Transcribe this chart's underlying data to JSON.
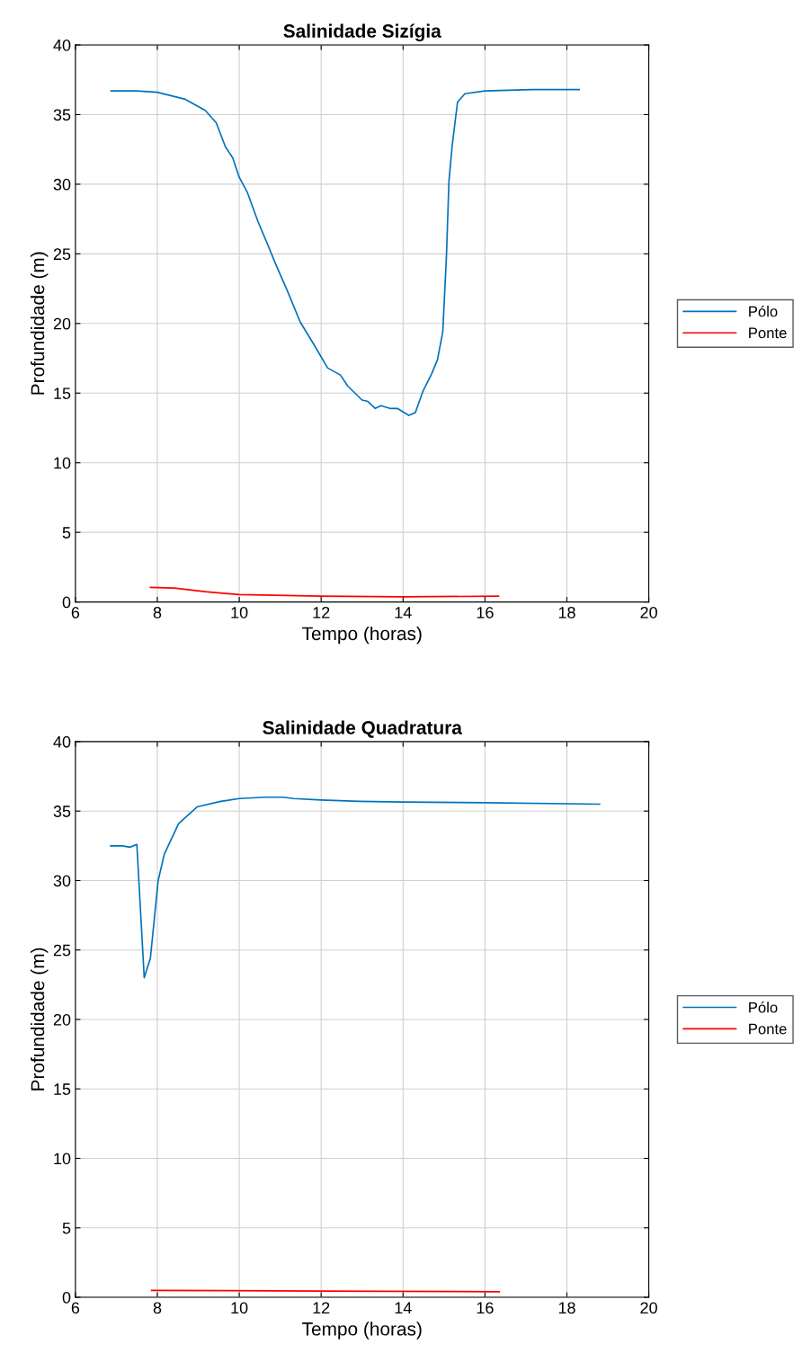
{
  "chart_data": [
    {
      "type": "line",
      "title": "Salinidade Sizígia",
      "xlabel": "Tempo (horas)",
      "ylabel": "Profundidade (m)",
      "xlim": [
        6,
        20
      ],
      "xticks": [
        6,
        8,
        10,
        12,
        14,
        16,
        18,
        20
      ],
      "ylim": [
        0,
        40
      ],
      "yticks": [
        0,
        5,
        10,
        15,
        20,
        25,
        30,
        35,
        40
      ],
      "grid": true,
      "legend": "right",
      "series": [
        {
          "name": "Pólo",
          "color": "#0072bd",
          "x": [
            6.87,
            7.5,
            8.0,
            8.68,
            9.17,
            9.44,
            9.66,
            9.84,
            10.0,
            10.2,
            10.46,
            10.69,
            10.87,
            11.18,
            11.49,
            11.8,
            12.16,
            12.47,
            12.65,
            13.0,
            13.14,
            13.32,
            13.46,
            13.68,
            13.86,
            14.14,
            14.3,
            14.48,
            14.7,
            14.84,
            14.97,
            15.06,
            15.12,
            15.2,
            15.33,
            15.51,
            16.0,
            17.16,
            18.3
          ],
          "values": [
            36.7,
            36.7,
            36.6,
            36.1,
            35.3,
            34.4,
            32.7,
            31.9,
            30.5,
            29.4,
            27.3,
            25.7,
            24.4,
            22.3,
            20.1,
            18.6,
            16.8,
            16.3,
            15.5,
            14.5,
            14.4,
            13.9,
            14.1,
            13.9,
            13.9,
            13.4,
            13.6,
            15.1,
            16.4,
            17.4,
            19.4,
            24.9,
            30.2,
            32.8,
            35.9,
            36.5,
            36.7,
            36.8,
            36.8
          ]
        },
        {
          "name": "Ponte",
          "color": "#ff0000",
          "x": [
            7.83,
            8.41,
            9.17,
            10.0,
            12.0,
            14.0,
            16.33
          ],
          "values": [
            1.05,
            1.0,
            0.74,
            0.53,
            0.42,
            0.37,
            0.42
          ]
        }
      ]
    },
    {
      "type": "line",
      "title": "Salinidade Quadratura",
      "xlabel": "Tempo (horas)",
      "ylabel": "Profundidade (m)",
      "xlim": [
        6,
        20
      ],
      "xticks": [
        6,
        8,
        10,
        12,
        14,
        16,
        18,
        20
      ],
      "ylim": [
        0,
        40
      ],
      "yticks": [
        0,
        5,
        10,
        15,
        20,
        25,
        30,
        35,
        40
      ],
      "grid": true,
      "legend": "right",
      "series": [
        {
          "name": "Pólo",
          "color": "#0072bd",
          "x": [
            6.86,
            7.15,
            7.33,
            7.5,
            7.68,
            7.83,
            8.02,
            8.17,
            8.52,
            8.97,
            9.55,
            10.0,
            10.62,
            11.07,
            11.33,
            12.0,
            12.93,
            14.0,
            16.0,
            18.8
          ],
          "values": [
            32.5,
            32.5,
            32.4,
            32.6,
            23.0,
            24.4,
            30.0,
            31.9,
            34.1,
            35.3,
            35.7,
            35.9,
            36.0,
            36.0,
            35.9,
            35.8,
            35.7,
            35.65,
            35.6,
            35.5
          ]
        },
        {
          "name": "Ponte",
          "color": "#ff0000",
          "x": [
            7.86,
            12.0,
            16.35
          ],
          "values": [
            0.5,
            0.45,
            0.4
          ]
        }
      ]
    }
  ]
}
